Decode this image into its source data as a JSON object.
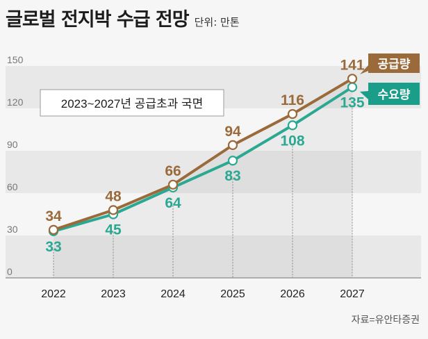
{
  "header": {
    "title": "글로벌 전지박 수급 전망",
    "unit": "단위: 만톤"
  },
  "annotation": "2023~2027년 공급초과 국면",
  "source": "자료=유안타증권",
  "colors": {
    "supply": "#9a6a3a",
    "demand": "#2aa892",
    "demand_label_bg": "#1a9e8a",
    "band": "#e8e8e8",
    "area": "#dcdcdc",
    "background": "#f6f6f6"
  },
  "chart_data": {
    "type": "line",
    "title": "글로벌 전지박 수급 전망",
    "subtitle": "단위: 만톤",
    "x": [
      "2022",
      "2023",
      "2024",
      "2025",
      "2026",
      "2027"
    ],
    "series": [
      {
        "name": "공급량",
        "key": "supply",
        "values": [
          34,
          48,
          66,
          94,
          116,
          141
        ]
      },
      {
        "name": "수요량",
        "key": "demand",
        "values": [
          33,
          45,
          64,
          83,
          108,
          135
        ]
      }
    ],
    "value_labels": {
      "supply": [
        "34",
        "48",
        "66",
        "94",
        "116",
        "141"
      ],
      "demand": [
        "33",
        "45",
        "64",
        "83",
        "108",
        "135"
      ]
    },
    "yticks": [
      "0",
      "30",
      "60",
      "90",
      "120",
      "150"
    ],
    "ytick_values": [
      0,
      30,
      60,
      90,
      120,
      150
    ],
    "ylim": [
      0,
      150
    ],
    "xlabel": "",
    "ylabel": "",
    "grid": "alternating horizontal bands",
    "legend": "right"
  }
}
